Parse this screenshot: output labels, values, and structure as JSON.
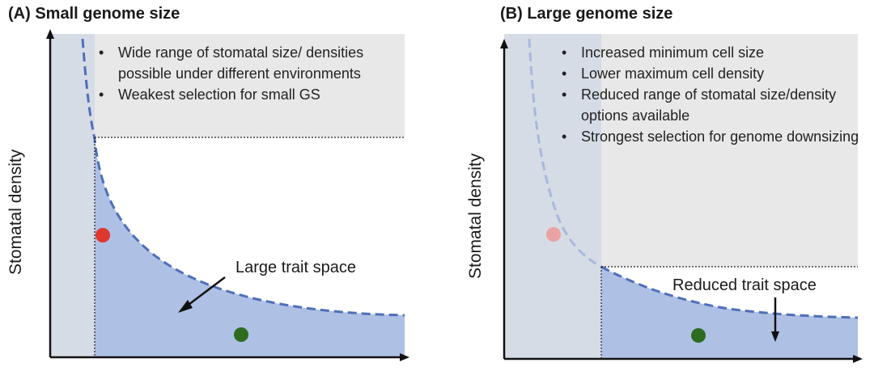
{
  "panel_a": {
    "title": "(A) Small genome size",
    "ylabel": "Stomatal density",
    "bullets": [
      "Wide range of stomatal size/ densities possible under different environments",
      "Weakest selection for small GS"
    ],
    "trait_label": "Large trait space",
    "points": [
      {
        "name": "red-point",
        "color": "#e0362c"
      },
      {
        "name": "green-point",
        "color": "#2e6b1f"
      }
    ]
  },
  "panel_b": {
    "title": "(B) Large genome size",
    "ylabel": "Stomatal density",
    "bullets": [
      "Increased minimum cell size",
      "Lower maximum cell density",
      "Reduced range of stomatal size/density options available",
      "Strongest selection for genome downsizing"
    ],
    "trait_label": "Reduced trait space",
    "points": [
      {
        "name": "faded-red-point",
        "color": "#e9a3a2"
      },
      {
        "name": "green-point",
        "color": "#2e6b1f"
      }
    ]
  },
  "colors": {
    "excluded_region": "#d6dce6",
    "grey_region": "#e8e8e8",
    "trait_space": "#aec0e4",
    "curve": "#4f6fb8",
    "curve_faded": "#a7b8de"
  }
}
